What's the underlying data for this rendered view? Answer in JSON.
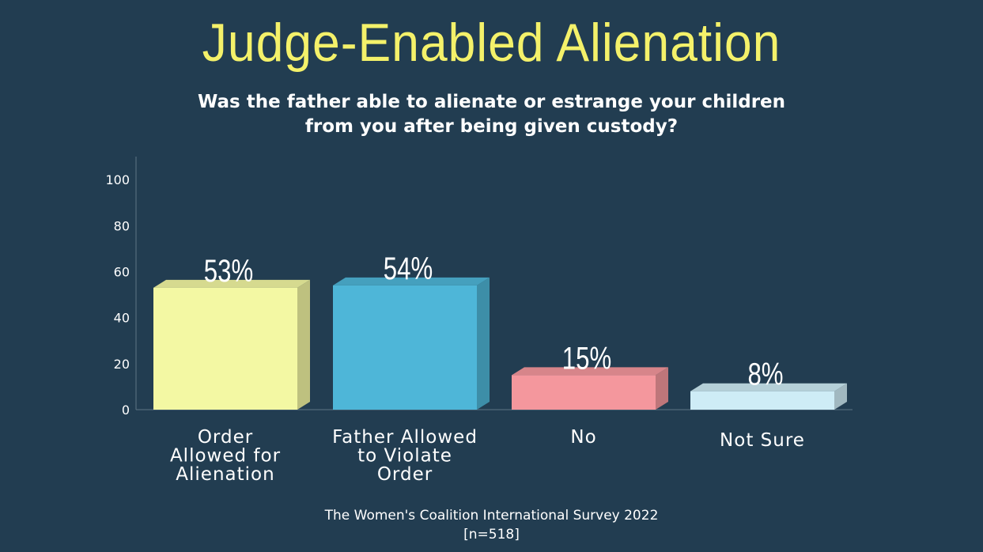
{
  "chart_data": {
    "type": "bar",
    "title": "Judge-Enabled Alienation",
    "subtitle": [
      "Was the father able to alienate or estrange your children",
      "from you after being given custody?"
    ],
    "categories": [
      [
        "Order",
        "Allowed for",
        "Alienation"
      ],
      [
        "Father Allowed",
        "to Violate",
        "Order"
      ],
      [
        "No"
      ],
      [
        "Not Sure"
      ]
    ],
    "values": [
      53,
      54,
      15,
      8
    ],
    "data_labels": [
      "53%",
      "54%",
      "15%",
      "8%"
    ],
    "colors": [
      "#f3f8a3",
      "#4eb6d8",
      "#f4979d",
      "#ceecf6"
    ],
    "ylim": [
      0,
      110
    ],
    "yticks": [
      0,
      20,
      40,
      60,
      80,
      100
    ],
    "grid": false,
    "legend": "none"
  },
  "source": {
    "line1": "The Women's Coalition International Survey 2022",
    "line2": "[n=518]"
  }
}
